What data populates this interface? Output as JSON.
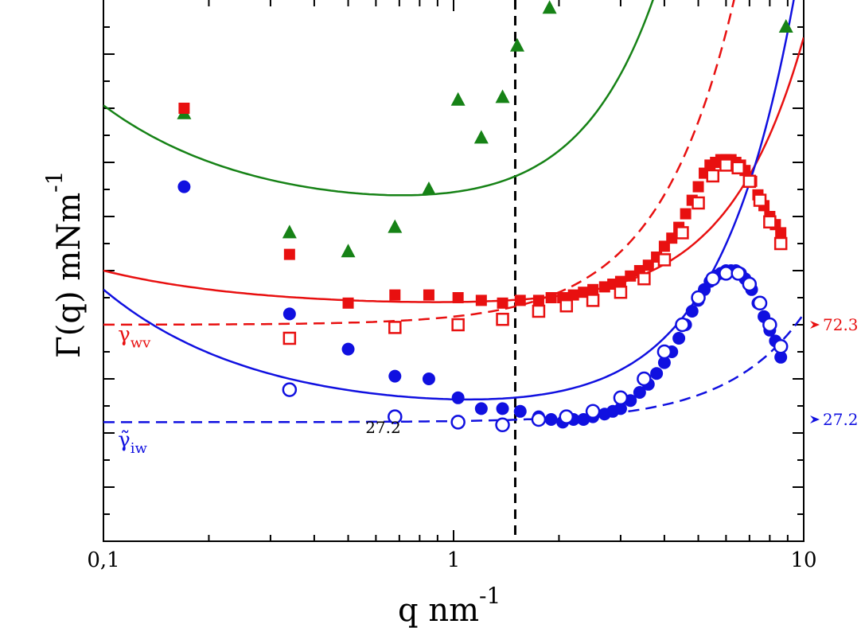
{
  "chart_data": {
    "type": "scatter",
    "title": "",
    "xlabel": "q nm",
    "xlabel_exp": "-1",
    "ylabel": "Γ(q) mNm",
    "ylabel_exp": "-1",
    "xscale": "log",
    "xlim": [
      0.1,
      10
    ],
    "ylim": [
      0,
      200
    ],
    "x_ticks": [
      {
        "value": 0.1,
        "label": "0,1"
      },
      {
        "value": 1,
        "label": "1"
      },
      {
        "value": 10,
        "label": "10"
      }
    ],
    "vline": 1.5,
    "colors": {
      "green": "#168216",
      "red": "#e81010",
      "blue": "#1010e0"
    },
    "series": [
      {
        "name": "green triangles",
        "marker": "triangle",
        "color": "#168216",
        "points": [
          [
            0.17,
            158
          ],
          [
            0.34,
            114
          ],
          [
            0.5,
            107
          ],
          [
            0.68,
            116
          ],
          [
            0.85,
            130
          ],
          [
            1.03,
            163
          ],
          [
            1.2,
            149
          ],
          [
            1.38,
            164
          ],
          [
            1.52,
            183
          ],
          [
            1.88,
            197
          ],
          [
            8.9,
            190
          ]
        ]
      },
      {
        "name": "red filled squares",
        "marker": "square-filled",
        "color": "#e81010",
        "points": [
          [
            0.17,
            160
          ],
          [
            0.34,
            106
          ],
          [
            0.5,
            88
          ],
          [
            0.68,
            91
          ],
          [
            0.85,
            91
          ],
          [
            1.03,
            90
          ],
          [
            1.2,
            89
          ],
          [
            1.38,
            88
          ],
          [
            1.55,
            89
          ],
          [
            1.75,
            89
          ],
          [
            1.9,
            90
          ],
          [
            2.05,
            90
          ],
          [
            2.2,
            91
          ],
          [
            2.35,
            92
          ],
          [
            2.5,
            93
          ],
          [
            2.7,
            94
          ],
          [
            2.85,
            95
          ],
          [
            3.0,
            96
          ],
          [
            3.2,
            98
          ],
          [
            3.4,
            100
          ],
          [
            3.6,
            102
          ],
          [
            3.8,
            105
          ],
          [
            4.0,
            109
          ],
          [
            4.2,
            112
          ],
          [
            4.4,
            116
          ],
          [
            4.6,
            121
          ],
          [
            4.8,
            126
          ],
          [
            5.0,
            131
          ],
          [
            5.2,
            136
          ],
          [
            5.4,
            139
          ],
          [
            5.6,
            140
          ],
          [
            5.8,
            141
          ],
          [
            6.0,
            141
          ],
          [
            6.2,
            141
          ],
          [
            6.4,
            140
          ],
          [
            6.6,
            139
          ],
          [
            6.8,
            137
          ],
          [
            7.1,
            133
          ],
          [
            7.4,
            128
          ],
          [
            7.7,
            124
          ],
          [
            8.0,
            120
          ],
          [
            8.3,
            117
          ],
          [
            8.6,
            114
          ]
        ]
      },
      {
        "name": "red open squares",
        "marker": "square-open",
        "color": "#e81010",
        "points": [
          [
            0.34,
            75
          ],
          [
            0.68,
            79
          ],
          [
            1.03,
            80
          ],
          [
            1.38,
            82
          ],
          [
            1.75,
            85
          ],
          [
            2.1,
            87
          ],
          [
            2.5,
            89
          ],
          [
            3.0,
            92
          ],
          [
            3.5,
            97
          ],
          [
            4.0,
            104
          ],
          [
            4.5,
            114
          ],
          [
            5.0,
            125
          ],
          [
            5.5,
            135
          ],
          [
            6.0,
            139
          ],
          [
            6.5,
            138
          ],
          [
            7.0,
            133
          ],
          [
            7.5,
            126
          ],
          [
            8.0,
            118
          ],
          [
            8.6,
            110
          ]
        ]
      },
      {
        "name": "blue filled circles",
        "marker": "circle-filled",
        "color": "#1010e0",
        "points": [
          [
            0.17,
            131
          ],
          [
            0.34,
            84
          ],
          [
            0.5,
            71
          ],
          [
            0.68,
            61
          ],
          [
            0.85,
            60
          ],
          [
            1.03,
            53
          ],
          [
            1.2,
            49
          ],
          [
            1.38,
            49
          ],
          [
            1.55,
            48
          ],
          [
            1.75,
            46
          ],
          [
            1.9,
            45
          ],
          [
            2.05,
            44
          ],
          [
            2.2,
            45
          ],
          [
            2.35,
            45
          ],
          [
            2.5,
            46
          ],
          [
            2.7,
            47
          ],
          [
            2.85,
            48
          ],
          [
            3.0,
            49
          ],
          [
            3.2,
            52
          ],
          [
            3.4,
            55
          ],
          [
            3.6,
            58
          ],
          [
            3.8,
            62
          ],
          [
            4.0,
            66
          ],
          [
            4.2,
            70
          ],
          [
            4.4,
            75
          ],
          [
            4.6,
            80
          ],
          [
            4.8,
            85
          ],
          [
            5.0,
            89
          ],
          [
            5.2,
            93
          ],
          [
            5.4,
            96
          ],
          [
            5.6,
            98
          ],
          [
            5.8,
            99
          ],
          [
            6.0,
            100
          ],
          [
            6.2,
            100
          ],
          [
            6.4,
            100
          ],
          [
            6.6,
            99
          ],
          [
            6.8,
            97
          ],
          [
            7.1,
            93
          ],
          [
            7.4,
            88
          ],
          [
            7.7,
            83
          ],
          [
            8.0,
            78
          ],
          [
            8.3,
            74
          ],
          [
            8.6,
            68
          ]
        ]
      },
      {
        "name": "blue open circles",
        "marker": "circle-open",
        "color": "#1010e0",
        "points": [
          [
            0.34,
            56
          ],
          [
            0.68,
            46
          ],
          [
            1.03,
            44
          ],
          [
            1.38,
            43
          ],
          [
            1.75,
            45
          ],
          [
            2.1,
            46
          ],
          [
            2.5,
            48
          ],
          [
            3.0,
            53
          ],
          [
            3.5,
            60
          ],
          [
            4.0,
            70
          ],
          [
            4.5,
            80
          ],
          [
            5.0,
            90
          ],
          [
            5.5,
            97
          ],
          [
            6.0,
            99
          ],
          [
            6.5,
            99
          ],
          [
            7.0,
            95
          ],
          [
            7.5,
            88
          ],
          [
            8.0,
            80
          ],
          [
            8.6,
            72
          ]
        ]
      }
    ],
    "fit_curves": [
      {
        "name": "green fit",
        "color": "#168216",
        "style": "solid",
        "a": 4.2,
        "b": 5.8,
        "c": 119
      },
      {
        "name": "red fit",
        "color": "#e81010",
        "style": "solid",
        "a": 1.4,
        "b": 1.0,
        "c": 86
      },
      {
        "name": "blue fit",
        "color": "#1010e0",
        "style": "solid",
        "a": 4.7,
        "b": 1.75,
        "c": 46
      },
      {
        "name": "red dashed fit",
        "color": "#e81010",
        "style": "dashed",
        "a": 0,
        "b": 3.0,
        "c": 80
      },
      {
        "name": "blue dashed fit",
        "color": "#1010e0",
        "style": "dashed",
        "a": 0,
        "b": 0.4,
        "c": 44
      }
    ],
    "annotations": {
      "gamma_wv": {
        "symbol": "γ",
        "sub": "wv",
        "color": "#e81010",
        "x": 0.11,
        "y": 74
      },
      "gamma_iw": {
        "symbol": "γ̃",
        "sub": "iw",
        "color": "#1010e0",
        "x": 0.11,
        "y": 35
      },
      "label_272_inside": {
        "text": "27.2",
        "color": "#000000",
        "x": 0.56,
        "y": 40
      },
      "right_arrows": [
        {
          "text": "72.3",
          "color": "#e81010",
          "y": 80
        },
        {
          "text": "27.2",
          "color": "#1010e0",
          "y": 45
        }
      ]
    }
  }
}
